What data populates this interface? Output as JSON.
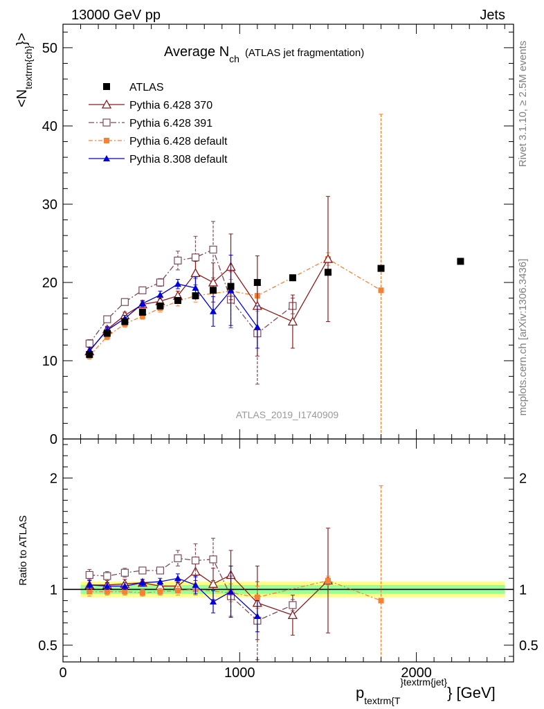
{
  "header": {
    "left": "13000 GeV pp",
    "right": "Jets"
  },
  "side_labels": {
    "top": "Rivet 3.1.10, ≥ 2.5M events",
    "bottom": "mcplots.cern.ch [arXiv:1306.3436]"
  },
  "watermark": "ATLAS_2019_I1740909",
  "title": {
    "main": "Average N",
    "sub": "ch",
    "paren": "(ATLAS jet fragmentation)"
  },
  "colors": {
    "ATLAS": "#000000",
    "p370": "#8b1a1a",
    "p391": "#7a4a5a",
    "p6def": "#f58234",
    "p8def": "#0000dd"
  },
  "chart_data": {
    "type": "scatter",
    "x_axis": {
      "range": [
        0,
        2550
      ],
      "ticks": [
        0,
        1000,
        2000
      ],
      "tick_labels": [
        "0",
        "1000",
        "2000"
      ],
      "label_main": "p",
      "label_sub": "textrm{T",
      "label_sup": "}textrm{jet}",
      "label_tail": "} [GeV]"
    },
    "main_panel": {
      "y_range": [
        0,
        53
      ],
      "y_ticks": [
        0,
        10,
        20,
        30,
        40,
        50
      ],
      "y_tick_labels": [
        "0",
        "10",
        "20",
        "30",
        "40",
        "50"
      ],
      "y_label_main": "<N",
      "y_label_sub": "textrm{ch}",
      "y_label_tail": "}>",
      "series": [
        {
          "key": "ATLAS",
          "name": "ATLAS",
          "marker": "square-filled",
          "points": [
            [
              150,
              10.8
            ],
            [
              250,
              13.5
            ],
            [
              350,
              15.0
            ],
            [
              450,
              16.2
            ],
            [
              550,
              17.0
            ],
            [
              650,
              17.7
            ],
            [
              750,
              18.3
            ],
            [
              850,
              19.0
            ],
            [
              950,
              19.5
            ],
            [
              1100,
              20.0
            ],
            [
              1300,
              20.6
            ],
            [
              1500,
              21.3
            ],
            [
              1800,
              21.8
            ],
            [
              2250,
              22.7
            ]
          ]
        },
        {
          "key": "p370",
          "name": "Pythia 6.428 370",
          "marker": "triangle-open",
          "dash": "",
          "points": [
            [
              150,
              11.2,
              0.5
            ],
            [
              250,
              14.0,
              0.4
            ],
            [
              350,
              15.8,
              0.4
            ],
            [
              450,
              17.2,
              0.4
            ],
            [
              550,
              17.6,
              0.5
            ],
            [
              650,
              18.3,
              0.6
            ],
            [
              750,
              21.2,
              1.5
            ],
            [
              850,
              20.0,
              2.5
            ],
            [
              950,
              22.0,
              4.2
            ],
            [
              1100,
              17.0,
              6.4
            ],
            [
              1300,
              15.0,
              3.4
            ],
            [
              1500,
              23.0,
              8.0
            ]
          ]
        },
        {
          "key": "p391",
          "name": "Pythia 6.428 391",
          "marker": "square-open",
          "dash": "8 3 2 3",
          "points": [
            [
              150,
              12.2,
              0.5
            ],
            [
              250,
              15.3,
              0.4
            ],
            [
              350,
              17.5,
              0.4
            ],
            [
              450,
              19.0,
              0.4
            ],
            [
              550,
              20.0,
              0.5
            ],
            [
              650,
              22.8,
              1.2
            ],
            [
              750,
              23.2,
              2.7
            ],
            [
              850,
              24.2,
              3.6
            ],
            [
              950,
              17.8,
              3.6
            ],
            [
              1100,
              13.5,
              6.5
            ],
            [
              1300,
              17.0,
              1.0
            ]
          ]
        },
        {
          "key": "p6def",
          "name": "Pythia 6.428 default",
          "marker": "square-filled",
          "dash": "6 3 2 3",
          "points": [
            [
              150,
              10.6,
              0.4
            ],
            [
              250,
              13.1,
              0.4
            ],
            [
              350,
              14.7,
              0.4
            ],
            [
              450,
              15.7,
              0.4
            ],
            [
              550,
              16.7,
              0.5
            ],
            [
              650,
              17.6,
              0.6
            ],
            [
              750,
              18.3,
              0.8
            ],
            [
              950,
              18.9,
              1.5
            ],
            [
              1100,
              18.3,
              2.0
            ],
            [
              1500,
              23.0,
              0.8
            ],
            [
              1800,
              19.0,
              22.5
            ]
          ]
        },
        {
          "key": "p8def",
          "name": "Pythia 8.308 default",
          "marker": "triangle-filled",
          "dash": "",
          "points": [
            [
              150,
              11.3,
              0.4
            ],
            [
              250,
              13.9,
              0.4
            ],
            [
              350,
              15.4,
              0.4
            ],
            [
              450,
              17.3,
              0.4
            ],
            [
              550,
              18.4,
              0.5
            ],
            [
              650,
              19.8,
              0.6
            ],
            [
              750,
              19.3,
              1.4
            ],
            [
              850,
              16.3,
              1.9
            ],
            [
              950,
              19.0,
              4.5
            ],
            [
              1100,
              14.3,
              2.7
            ]
          ]
        }
      ]
    },
    "ratio_panel": {
      "y_range": [
        0.35,
        2.35
      ],
      "y_ticks": [
        0.5,
        1,
        2
      ],
      "y_tick_labels": [
        "0.5",
        "1",
        "2"
      ],
      "y_label": "Ratio to ATLAS",
      "series": [
        {
          "key": "p370",
          "points": [
            [
              150,
              1.04,
              0.05
            ],
            [
              250,
              1.04,
              0.04
            ],
            [
              350,
              1.05,
              0.04
            ],
            [
              450,
              1.06,
              0.03
            ],
            [
              550,
              1.03,
              0.03
            ],
            [
              650,
              1.03,
              0.04
            ],
            [
              750,
              1.16,
              0.08
            ],
            [
              850,
              1.05,
              0.14
            ],
            [
              950,
              1.13,
              0.22
            ],
            [
              1100,
              0.88,
              0.33
            ],
            [
              1300,
              0.77,
              0.18
            ],
            [
              1500,
              1.08,
              0.47
            ]
          ]
        },
        {
          "key": "p391",
          "points": [
            [
              150,
              1.13,
              0.05
            ],
            [
              250,
              1.12,
              0.04
            ],
            [
              350,
              1.15,
              0.04
            ],
            [
              450,
              1.17,
              0.03
            ],
            [
              550,
              1.17,
              0.03
            ],
            [
              650,
              1.28,
              0.07
            ],
            [
              750,
              1.26,
              0.15
            ],
            [
              850,
              1.27,
              0.19
            ],
            [
              950,
              0.94,
              0.18
            ],
            [
              1100,
              0.72,
              0.35
            ],
            [
              1300,
              0.86,
              0.05
            ]
          ]
        },
        {
          "key": "p6def",
          "points": [
            [
              150,
              0.98,
              0.04
            ],
            [
              250,
              0.98,
              0.03
            ],
            [
              350,
              0.98,
              0.03
            ],
            [
              450,
              0.97,
              0.03
            ],
            [
              550,
              0.98,
              0.03
            ],
            [
              650,
              0.99,
              0.04
            ],
            [
              750,
              1.0,
              0.05
            ],
            [
              950,
              0.97,
              0.08
            ],
            [
              1100,
              0.93,
              0.1
            ],
            [
              1500,
              1.08,
              0.04
            ],
            [
              1800,
              0.9,
              1.03
            ]
          ]
        },
        {
          "key": "p8def",
          "points": [
            [
              150,
              1.04,
              0.04
            ],
            [
              250,
              1.03,
              0.03
            ],
            [
              350,
              1.03,
              0.03
            ],
            [
              450,
              1.06,
              0.03
            ],
            [
              550,
              1.07,
              0.03
            ],
            [
              650,
              1.1,
              0.04
            ],
            [
              750,
              1.04,
              0.08
            ],
            [
              850,
              0.89,
              0.1
            ],
            [
              950,
              0.98,
              0.23
            ],
            [
              1100,
              0.76,
              0.14
            ]
          ]
        }
      ]
    }
  }
}
